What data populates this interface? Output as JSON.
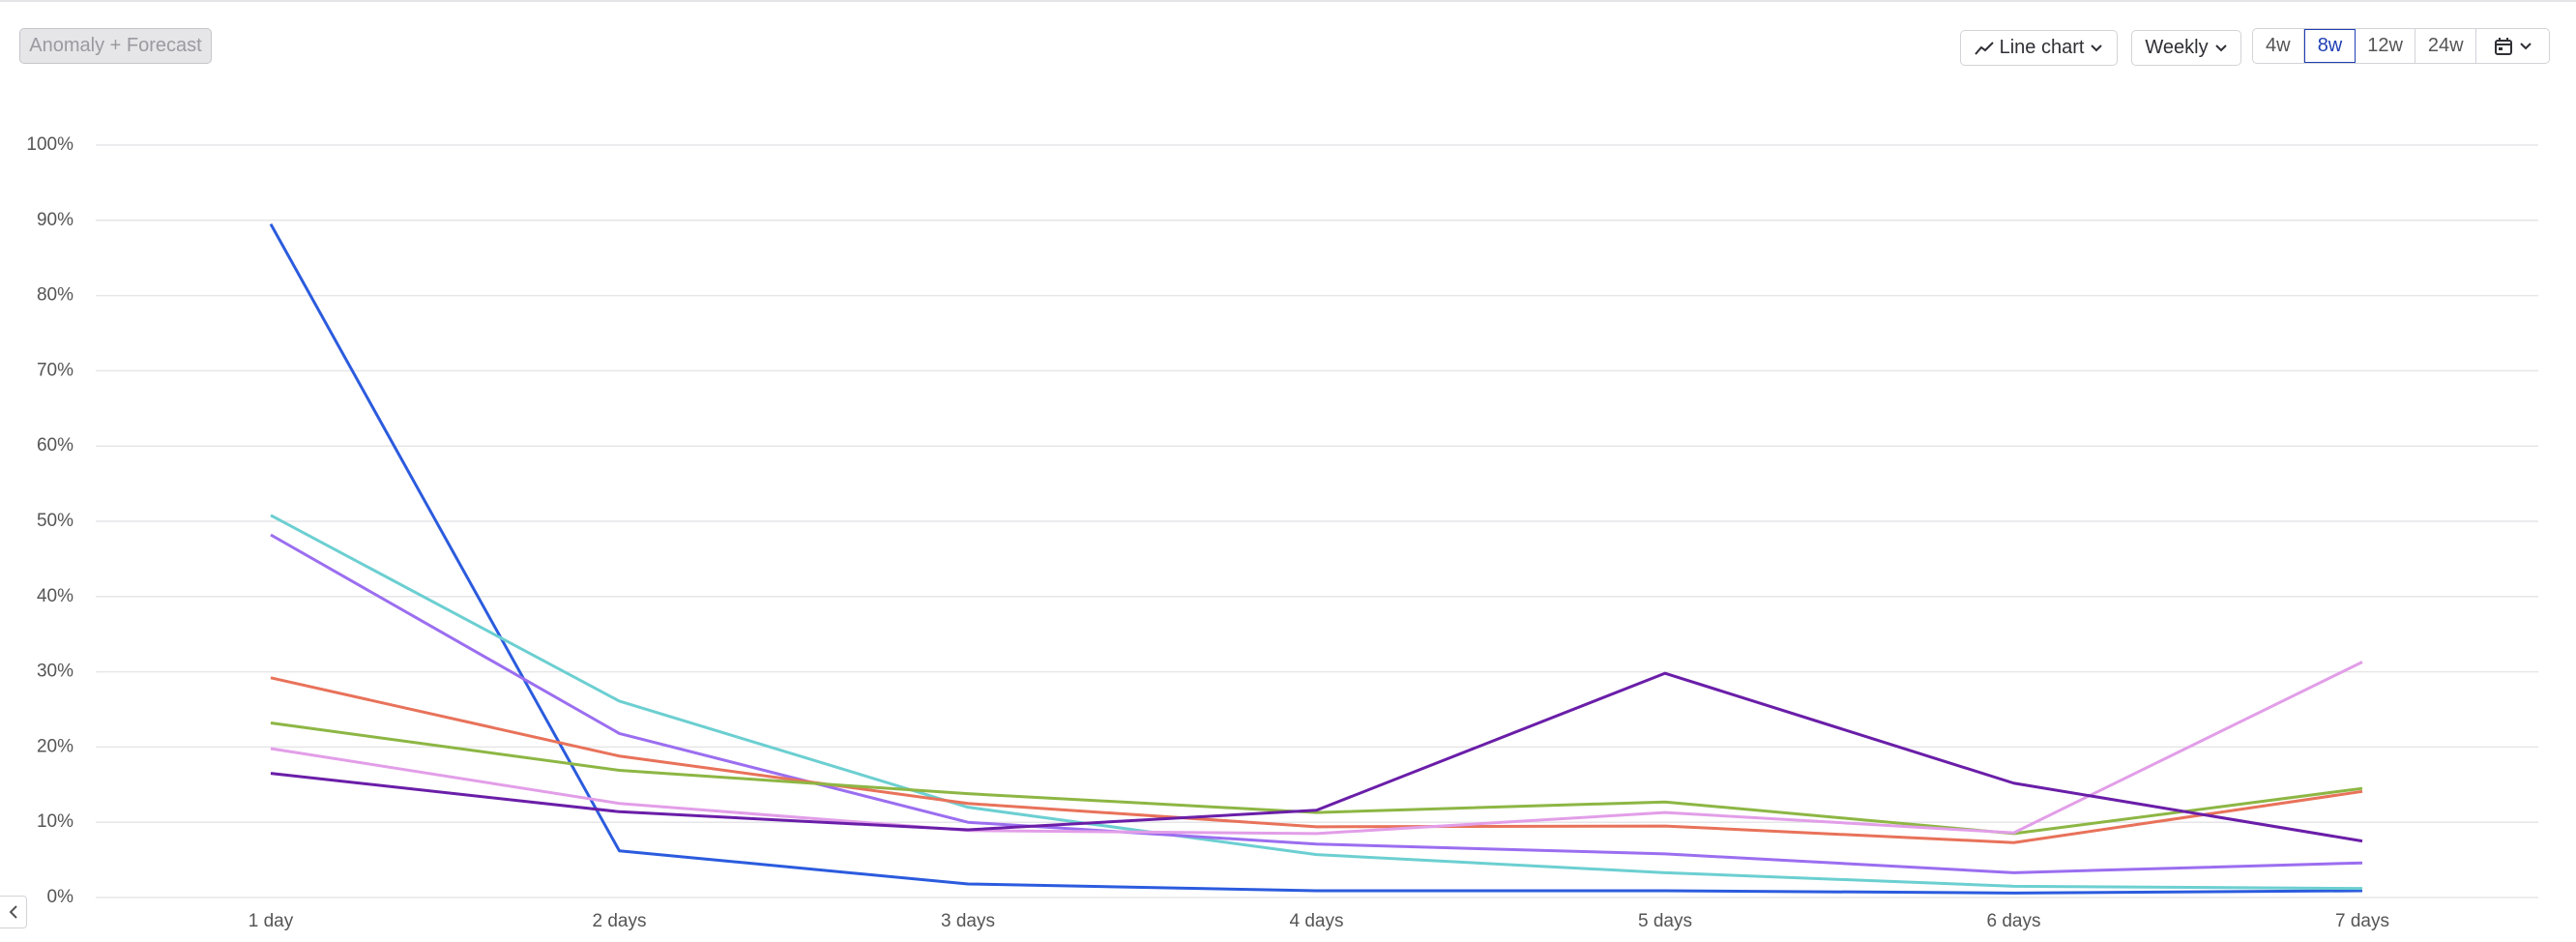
{
  "toolbar": {
    "anomaly_button": "Anomaly + Forecast",
    "chart_type": "Line chart",
    "interval": "Weekly",
    "ranges": [
      "4w",
      "8w",
      "12w",
      "24w"
    ]
  },
  "chart_data": {
    "type": "line",
    "categories": [
      "1 day",
      "2 days",
      "3 days",
      "4 days",
      "5 days",
      "6 days",
      "7 days"
    ],
    "series": [
      {
        "color": "#2b5bde",
        "values": [
          89.5,
          6.2,
          1.8,
          0.9,
          0.9,
          0.6,
          0.9
        ]
      },
      {
        "color": "#6ccfd1",
        "values": [
          50.8,
          26.1,
          12,
          5.7,
          3.3,
          1.5,
          1.2
        ]
      },
      {
        "color": "#9b6ef0",
        "values": [
          48.2,
          21.8,
          10,
          7.1,
          5.8,
          3.3,
          4.6
        ]
      },
      {
        "color": "#e8725a",
        "values": [
          29.2,
          18.8,
          12.5,
          9.4,
          9.5,
          7.3,
          14.1
        ]
      },
      {
        "color": "#8db644",
        "values": [
          23.2,
          16.9,
          13.8,
          11.3,
          12.7,
          8.5,
          14.5
        ]
      },
      {
        "color": "#e29ee8",
        "values": [
          19.8,
          12.5,
          8.9,
          8.5,
          11.3,
          8.6,
          31.3
        ]
      },
      {
        "color": "#6a1ea8",
        "values": [
          16.5,
          11.4,
          9.0,
          11.6,
          29.8,
          15.2,
          7.5
        ]
      }
    ],
    "ylim": [
      0,
      100
    ],
    "yticks": [
      {
        "value": 0,
        "label": "0%"
      },
      {
        "value": 10,
        "label": "10%"
      },
      {
        "value": 20,
        "label": "20%"
      },
      {
        "value": 30,
        "label": "30%"
      },
      {
        "value": 40,
        "label": "40%"
      },
      {
        "value": 50,
        "label": "50%"
      },
      {
        "value": 60,
        "label": "60%"
      },
      {
        "value": 70,
        "label": "70%"
      },
      {
        "value": 80,
        "label": "80%"
      },
      {
        "value": 90,
        "label": "90%"
      },
      {
        "value": 100,
        "label": "100%"
      }
    ],
    "grid": true
  }
}
